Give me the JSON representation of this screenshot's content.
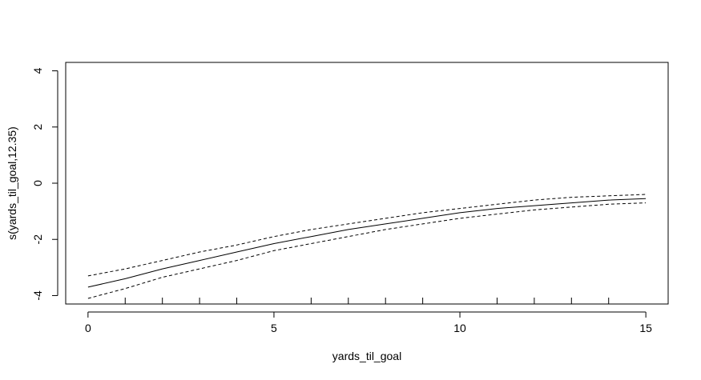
{
  "chart_data": {
    "type": "line",
    "xlabel": "yards_til_goal",
    "ylabel": "s(yards_til_goal,12.35)",
    "xlim": [
      -0.6,
      15.6
    ],
    "ylim": [
      -4.3,
      4.3
    ],
    "x_ticks": [
      0,
      5,
      10,
      15
    ],
    "x_minor_ticks": [
      1,
      2,
      3,
      4,
      6,
      7,
      8,
      9,
      11,
      12,
      13,
      14
    ],
    "y_ticks": [
      -4,
      -2,
      0,
      2,
      4
    ],
    "grid": false,
    "series": [
      {
        "role": "fit",
        "style": "solid",
        "x": [
          0,
          1,
          2,
          3,
          4,
          5,
          6,
          7,
          8,
          9,
          10,
          11,
          12,
          13,
          14,
          15
        ],
        "y": [
          -3.7,
          -3.4,
          -3.05,
          -2.75,
          -2.45,
          -2.15,
          -1.9,
          -1.65,
          -1.45,
          -1.25,
          -1.05,
          -0.9,
          -0.8,
          -0.7,
          -0.6,
          -0.55
        ]
      },
      {
        "role": "upper",
        "style": "dashed",
        "x": [
          0,
          1,
          2,
          3,
          4,
          5,
          6,
          7,
          8,
          9,
          10,
          11,
          12,
          13,
          14,
          15
        ],
        "y": [
          -3.3,
          -3.05,
          -2.75,
          -2.45,
          -2.2,
          -1.9,
          -1.65,
          -1.45,
          -1.25,
          -1.05,
          -0.9,
          -0.75,
          -0.6,
          -0.5,
          -0.45,
          -0.4
        ]
      },
      {
        "role": "lower",
        "style": "dashed",
        "x": [
          0,
          1,
          2,
          3,
          4,
          5,
          6,
          7,
          8,
          9,
          10,
          11,
          12,
          13,
          14,
          15
        ],
        "y": [
          -4.1,
          -3.75,
          -3.35,
          -3.05,
          -2.75,
          -2.4,
          -2.15,
          -1.9,
          -1.65,
          -1.45,
          -1.25,
          -1.1,
          -0.95,
          -0.85,
          -0.75,
          -0.7
        ]
      }
    ]
  }
}
